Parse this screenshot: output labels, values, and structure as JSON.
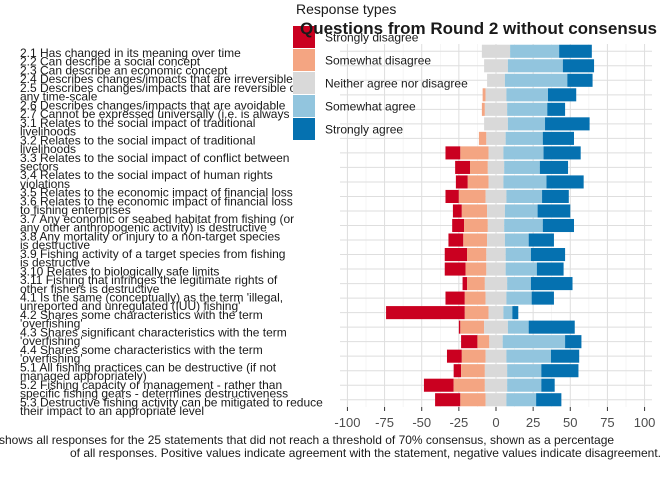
{
  "chart_data": {
    "type": "bar",
    "stacked": "diverging",
    "title": "Questions from Round 2 without consensus",
    "xlabel": "",
    "ylabel": "",
    "xlim": [
      -105,
      105
    ],
    "xticks": [
      -100,
      -75,
      -50,
      -25,
      0,
      25,
      50,
      75,
      100
    ],
    "xtick_labels": [
      "-100",
      "-75",
      "-50",
      "-25",
      "0",
      "25",
      "50",
      "75",
      "100"
    ],
    "grid": true,
    "legend": {
      "title": "Response types",
      "position": "top-right",
      "entries": [
        {
          "name": "Strongly disagree",
          "color": "#ca0020"
        },
        {
          "name": "Somewhat disagree",
          "color": "#f4a582"
        },
        {
          "name": "Neither agree nor disagree",
          "color": "#d9d9d9"
        },
        {
          "name": "Somewhat agree",
          "color": "#92c5de"
        },
        {
          "name": "Strongly agree",
          "color": "#0571b0"
        }
      ]
    },
    "categories": [
      "2.1 Has changed in its meaning over time",
      "2.2 Can describe a social concept",
      "2.3 Can describe an economic concept",
      "2.4 Describes changes/impacts that are irreversible",
      "2.5 Describes changes/impacts that are reversible over any time-scale",
      "2.6 Describes changes/impacts that are avoidable",
      "2.7 Cannot be expressed universally (i.e. is always context-dependent)",
      "3.1 Relates to the social impact of traditional livelihoods",
      "3.2 Relates to the social impact of traditional livelihoods",
      "3.3 Relates to the social impact of conflict between sectors",
      "3.4 Relates to the social impact of human rights violations",
      "3.5 Relates to the economic impact of financial loss",
      "3.6 Relates to the economic impact of financial loss to fishing enterprises",
      "3.7 Any economic or seabed habitat from fishing (or any other anthropogenic activity) is destructive",
      "3.8 Any mortality or injury to a non-target species is destructive",
      "3.9 Fishing activity of a target species from fishing is destructive",
      "3.10 Relates to biologically safe limits",
      "3.11 Fishing that infringes the legitimate rights of other fishers is destructive",
      "4.1 Is the same (conceptually) as the term 'illegal, unreported and unregulated (IUU) fishing'",
      "4.2 Shares some characteristics with the term 'overfishing'",
      "4.3 Shares significant characteristics with the term 'overfishing'",
      "4.4 Shares some characteristics with the term 'overfishing'",
      "5.1 All fishing practices can be destructive (if not managed appropriately)",
      "5.2 Fishing capacity or management - rather than specific fishing gears - determines destructiveness",
      "5.3 Destructive fishing activity can be mitigated to reduce their impact to an appropriate level"
    ],
    "label_lines": [
      "2.1 Has changed in its meaning over time",
      "2.2 Can describe a social concept",
      "2.3 Can describe an economic concept",
      "2.4 Describes changes/impacts that are irreversible",
      "2.5 Describes changes/impacts that are reversible over",
      "any time-scale",
      "2.6 Describes changes/impacts that are avoidable",
      "2.7 Cannot be expressed universally (i.e. is always",
      "3.1 Relates to the social impact of traditional",
      "livelihoods",
      "3.2 Relates to the social impact of traditional",
      "livelihoods",
      "3.3 Relates to the social impact of conflict between",
      "sectors",
      "3.4 Relates to the social impact of human rights",
      "violations",
      "3.5 Relates to the economic impact of financial loss",
      "3.6 Relates to the economic impact of financial loss",
      "to fishing enterprises",
      "3.7 Any economic or seabed habitat from fishing (or",
      "any other anthropogenic activity) is destructive",
      "3.8 Any mortality or injury to a non-target species",
      "is destructive",
      "3.9 Fishing activity of a target species from fishing",
      "is destructive",
      "3.10 Relates to biologically safe limits",
      "3.11 Fishing that infringes the legitimate rights of",
      "other fishers is destructive",
      "4.1 Is the same (conceptually) as the term 'illegal,",
      "unreported and unregulated (IUU) fishing'",
      "4.2 Shares some characteristics with the term",
      "'overfishing'",
      "4.3 Shares significant characteristics with the term",
      "'overfishing'",
      "4.4 Shares some characteristics with the term",
      "'overfishing'",
      "5.1 All fishing practices can be destructive (if not",
      "managed appropriately)",
      "5.2 Fishing capacity or management - rather than",
      "specific fishing gears - determines destructiveness",
      "5.3 Destructive fishing activity can be mitigated to reduce",
      "their impact to an appropriate level"
    ],
    "series": [
      {
        "name": "Strongly disagree",
        "values": [
          0,
          0,
          0,
          0,
          0,
          0,
          0,
          10,
          10,
          8,
          9,
          6,
          8,
          10,
          15,
          14,
          3,
          13,
          53,
          1,
          11,
          10,
          5,
          20,
          17
        ]
      },
      {
        "name": "Somewhat disagree",
        "values": [
          0,
          0,
          0,
          2,
          2,
          0,
          5,
          19,
          12,
          14,
          18,
          17,
          16,
          16,
          13,
          14,
          12,
          14,
          16,
          16,
          8,
          16,
          16,
          21,
          17
        ]
      },
      {
        "name": "Neither agree nor disagree",
        "values": [
          19,
          16,
          12,
          14,
          15,
          16,
          13,
          10,
          11,
          10,
          14,
          12,
          11,
          12,
          13,
          13,
          15,
          14,
          10,
          16,
          9,
          14,
          15,
          15,
          14
        ]
      },
      {
        "name": "Somewhat agree",
        "values": [
          33,
          37,
          42,
          28,
          27,
          25,
          25,
          27,
          24,
          29,
          24,
          22,
          26,
          16,
          17,
          21,
          16,
          17,
          6,
          14,
          42,
          30,
          23,
          23,
          20
        ]
      },
      {
        "name": "Strongly agree",
        "values": [
          22,
          21,
          17,
          19,
          12,
          30,
          21,
          25,
          19,
          25,
          18,
          22,
          21,
          17,
          23,
          18,
          28,
          15,
          4,
          31,
          11,
          19,
          25,
          9,
          17
        ]
      }
    ],
    "caption": [
      "shows all responses for the 25 statements that did not reach a threshold of 70% consensus, shown as a percentage",
      "of all responses. Positive values indicate agreement with the statement, negative values indicate disagreement."
    ]
  }
}
